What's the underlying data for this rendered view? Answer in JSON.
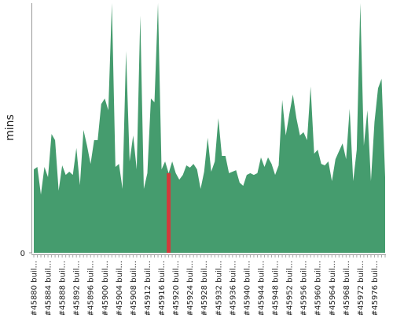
{
  "chart_data": {
    "type": "area",
    "y_label": "mins",
    "ylim": [
      0,
      100
    ],
    "yticks": [
      0
    ],
    "categories": [
      "#45880 buil...",
      null,
      null,
      null,
      "#45884 buil...",
      null,
      null,
      null,
      "#45888 buil...",
      null,
      null,
      null,
      "#45892 buil...",
      null,
      null,
      null,
      "#45896 buil...",
      null,
      null,
      null,
      "#45900 buil...",
      null,
      null,
      null,
      "#45904 buil...",
      null,
      null,
      null,
      "#45908 buil...",
      null,
      null,
      null,
      "#45912 buil...",
      null,
      null,
      null,
      "#45916 buil...",
      null,
      null,
      null,
      "#45920 buil...",
      null,
      null,
      null,
      "#45924 buil...",
      null,
      null,
      null,
      "#45928 buil...",
      null,
      null,
      null,
      "#45932 buil...",
      null,
      null,
      null,
      "#45936 buil...",
      null,
      null,
      null,
      "#45940 buil...",
      null,
      null,
      null,
      "#45944 buil...",
      null,
      null,
      null,
      "#45948 buil...",
      null,
      null,
      null,
      "#45952 buil...",
      null,
      null,
      null,
      "#45956 buil...",
      null,
      null,
      null,
      "#45960 buil...",
      null,
      null,
      null,
      "#45964 buil...",
      null,
      null,
      null,
      "#45968 buil...",
      null,
      null,
      null,
      "#45972 buil...",
      null,
      null,
      null,
      "#45976 buil...",
      null,
      null,
      null
    ],
    "series": [
      {
        "color": "#459c6e",
        "values": [
          33.4,
          34.4,
          23.3,
          34.4,
          30.3,
          47.6,
          45.1,
          24.9,
          35.0,
          31.2,
          32.5,
          31.2,
          42.0,
          27.1,
          49.2,
          42.9,
          35.6,
          45.1,
          45.1,
          59.6,
          61.8,
          57.1,
          100,
          34.4,
          35.6,
          25.6,
          80.8,
          36.6,
          47.0,
          33.4,
          95.0,
          25.6,
          31.9,
          61.8,
          60.3,
          100,
          33.4,
          36.6,
          31.9,
          36.6,
          31.9,
          29.3,
          31.2,
          35.0,
          34.1,
          35.6,
          33.4,
          25.6,
          32.5,
          46.1,
          32.5,
          36.6,
          53.9,
          38.8,
          38.8,
          31.9,
          32.5,
          33.1,
          28.1,
          26.8,
          31.2,
          31.9,
          31.2,
          31.9,
          38.2,
          34.4,
          38.2,
          35.6,
          31.2,
          35.0,
          61.2,
          47.0,
          55.5,
          63.4,
          53.9,
          47.0,
          48.3,
          45.1,
          66.6,
          39.7,
          41.3,
          35.6,
          35.0,
          36.6,
          28.7,
          37.5,
          40.7,
          43.8,
          37.5,
          57.7,
          28.7,
          41.3,
          100,
          42.9,
          57.1,
          28.7,
          52.4,
          65.9,
          69.7,
          30.3
        ]
      }
    ],
    "highlight": 38,
    "highlight_color": "#d13b3b"
  }
}
